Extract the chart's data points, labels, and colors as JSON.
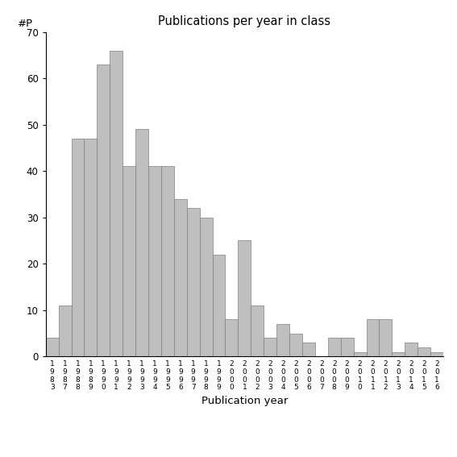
{
  "title": "Publications per year in class",
  "xlabel": "Publication year",
  "ylabel": "#P",
  "bar_color": "#bfbfbf",
  "bar_edge_color": "#808080",
  "ylim": [
    0,
    70
  ],
  "yticks": [
    0,
    10,
    20,
    30,
    40,
    50,
    60,
    70
  ],
  "years": [
    1983,
    1987,
    1988,
    1989,
    1990,
    1991,
    1992,
    1993,
    1994,
    1995,
    1996,
    1997,
    1998,
    1999,
    2000,
    2001,
    2002,
    2003,
    2004,
    2005,
    2006,
    2007,
    2008,
    2009,
    2010,
    2011,
    2012,
    2013,
    2014,
    2015,
    2016
  ],
  "values": [
    4,
    11,
    47,
    47,
    63,
    66,
    41,
    49,
    41,
    41,
    34,
    32,
    30,
    22,
    8,
    25,
    11,
    4,
    7,
    5,
    3,
    0,
    4,
    4,
    1,
    8,
    8,
    1,
    3,
    2,
    1
  ]
}
